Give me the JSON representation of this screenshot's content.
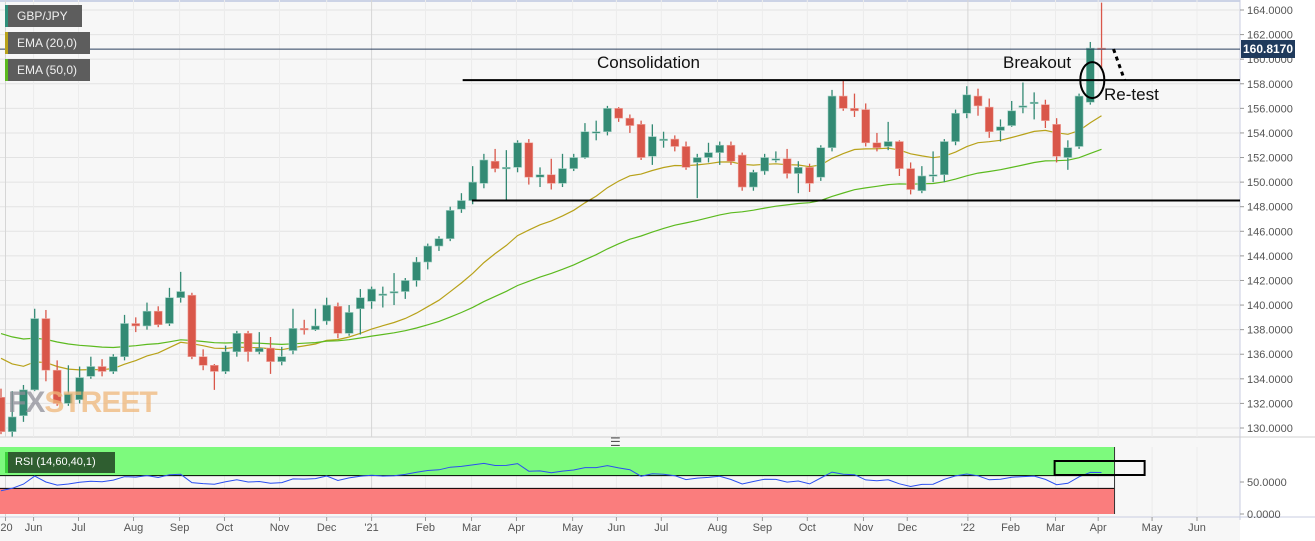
{
  "symbol": "GBP/JPY",
  "indicators": [
    {
      "label": "EMA (20,0)",
      "period": 20,
      "color": "#b8a21a",
      "seed": 136.3
    },
    {
      "label": "EMA (50,0)",
      "period": 50,
      "color": "#5cba1f",
      "seed": 138.0
    }
  ],
  "colors": {
    "up": "#338a74",
    "down": "#d9574a",
    "symbol_accent": "#2f8f7a",
    "rsi_line": "#2b4ff0",
    "overbought_zone": "#7dfa7d",
    "oversold_zone": "#fa7d7d",
    "price_tag": "#1f3a5c"
  },
  "last_price": "160.8170",
  "watermark": {
    "part1": "FX",
    "part2": "STREET"
  },
  "annotations": {
    "consolidation": "Consolidation",
    "breakout": "Breakout",
    "retest": "Re-test",
    "resistance": 158.3,
    "support": 148.5,
    "resistance_from_week": 42,
    "support_from_week": 43
  },
  "rsi": {
    "label": "RSI (14,60,40,1)",
    "period": 14,
    "upper": 60,
    "lower": 40,
    "ticks": [
      "50.0000",
      "0.0000"
    ],
    "tick_values": [
      50,
      0
    ],
    "seed_gain": 0.55,
    "seed_loss": 0.75
  },
  "chart_data": {
    "type": "candlestick",
    "title": "GBP/JPY weekly",
    "ylim": [
      129.2,
      165
    ],
    "y_ticks": [
      130,
      132,
      134,
      136,
      138,
      140,
      142,
      144,
      146,
      148,
      150,
      152,
      154,
      156,
      158,
      160,
      162,
      164
    ],
    "y_tick_labels": [
      "130.0000",
      "132.0000",
      "134.0000",
      "136.0000",
      "138.0000",
      "140.0000",
      "142.0000",
      "144.0000",
      "146.0000",
      "148.0000",
      "150.0000",
      "152.0000",
      "154.0000",
      "156.0000",
      "158.0000",
      "160.0000",
      "162.0000",
      "164.0000"
    ],
    "x_ticks": [
      {
        "label": "'20",
        "week": 0.4
      },
      {
        "label": "Jun",
        "week": 2.9
      },
      {
        "label": "Jul",
        "week": 6.9
      },
      {
        "label": "Aug",
        "week": 11.8
      },
      {
        "label": "Sep",
        "week": 15.9
      },
      {
        "label": "Oct",
        "week": 19.9
      },
      {
        "label": "Nov",
        "week": 24.8
      },
      {
        "label": "Dec",
        "week": 29.0
      },
      {
        "label": "'21",
        "week": 33.0
      },
      {
        "label": "Feb",
        "week": 37.8
      },
      {
        "label": "Mar",
        "week": 41.9
      },
      {
        "label": "Apr",
        "week": 45.9
      },
      {
        "label": "May",
        "week": 50.9
      },
      {
        "label": "Jun",
        "week": 54.8
      },
      {
        "label": "Jul",
        "week": 58.8
      },
      {
        "label": "Aug",
        "week": 63.8
      },
      {
        "label": "Sep",
        "week": 67.8
      },
      {
        "label": "Oct",
        "week": 71.8
      },
      {
        "label": "Nov",
        "week": 76.8
      },
      {
        "label": "Dec",
        "week": 80.7
      },
      {
        "label": "'22",
        "week": 86.1
      },
      {
        "label": "Feb",
        "week": 89.9
      },
      {
        "label": "Mar",
        "week": 93.9
      },
      {
        "label": "Apr",
        "week": 97.7
      },
      {
        "label": "May",
        "week": 102.5
      },
      {
        "label": "Jun",
        "week": 106.5
      }
    ],
    "ohlc": [
      [
        132.5,
        133.2,
        129.5,
        129.7
      ],
      [
        129.7,
        133.0,
        129.3,
        130.9
      ],
      [
        131.0,
        133.5,
        130.5,
        133.1
      ],
      [
        133.1,
        139.7,
        133.0,
        138.9
      ],
      [
        138.9,
        139.6,
        133.8,
        134.7
      ],
      [
        134.7,
        135.5,
        131.8,
        132.0
      ],
      [
        132.0,
        135.1,
        131.8,
        132.8
      ],
      [
        132.3,
        135.0,
        132.0,
        134.1
      ],
      [
        134.2,
        135.8,
        134.0,
        135.0
      ],
      [
        135.0,
        135.6,
        134.2,
        134.6
      ],
      [
        134.6,
        136.0,
        134.4,
        135.8
      ],
      [
        135.8,
        139.2,
        135.5,
        138.5
      ],
      [
        138.5,
        139.0,
        137.8,
        138.3
      ],
      [
        138.3,
        140.2,
        138.0,
        139.5
      ],
      [
        139.5,
        139.9,
        138.2,
        138.4
      ],
      [
        138.5,
        141.4,
        138.3,
        140.6
      ],
      [
        140.6,
        142.7,
        140.2,
        141.1
      ],
      [
        140.8,
        141.0,
        135.6,
        135.8
      ],
      [
        135.8,
        136.4,
        134.7,
        135.1
      ],
      [
        135.1,
        135.2,
        133.1,
        134.6
      ],
      [
        134.6,
        136.7,
        134.4,
        136.2
      ],
      [
        136.2,
        137.9,
        135.8,
        137.7
      ],
      [
        137.7,
        137.9,
        135.4,
        136.2
      ],
      [
        136.2,
        137.8,
        136.0,
        136.5
      ],
      [
        136.5,
        137.4,
        134.4,
        135.4
      ],
      [
        135.4,
        136.6,
        135.1,
        135.8
      ],
      [
        136.3,
        139.7,
        136.0,
        138.1
      ],
      [
        138.1,
        138.8,
        137.6,
        138.0
      ],
      [
        138.0,
        139.7,
        137.9,
        138.3
      ],
      [
        138.7,
        140.6,
        138.4,
        140.0
      ],
      [
        139.9,
        140.2,
        137.3,
        137.7
      ],
      [
        137.7,
        140.0,
        137.5,
        139.4
      ],
      [
        139.7,
        141.3,
        137.6,
        140.6
      ],
      [
        140.3,
        141.5,
        139.7,
        141.3
      ],
      [
        140.8,
        141.5,
        139.8,
        140.9
      ],
      [
        141.0,
        142.6,
        140.0,
        141.1
      ],
      [
        141.1,
        142.2,
        140.5,
        142.0
      ],
      [
        142.0,
        143.9,
        141.5,
        143.5
      ],
      [
        143.5,
        145.0,
        142.9,
        144.8
      ],
      [
        144.8,
        145.6,
        144.4,
        145.4
      ],
      [
        145.4,
        148.0,
        145.2,
        147.7
      ],
      [
        147.8,
        149.1,
        147.5,
        148.5
      ],
      [
        148.5,
        151.3,
        148.2,
        150.0
      ],
      [
        149.9,
        152.3,
        149.5,
        151.8
      ],
      [
        151.7,
        152.7,
        150.8,
        151.1
      ],
      [
        151.1,
        152.6,
        148.5,
        151.2
      ],
      [
        151.2,
        153.4,
        150.8,
        153.2
      ],
      [
        153.2,
        153.5,
        149.8,
        150.4
      ],
      [
        150.4,
        151.2,
        149.6,
        150.6
      ],
      [
        150.6,
        151.9,
        149.4,
        149.9
      ],
      [
        149.9,
        152.3,
        149.6,
        151.1
      ],
      [
        151.1,
        152.3,
        150.9,
        152.0
      ],
      [
        152.0,
        154.8,
        151.9,
        154.1
      ],
      [
        154.0,
        155.0,
        153.4,
        154.1
      ],
      [
        154.1,
        156.2,
        153.8,
        156.0
      ],
      [
        156.0,
        156.1,
        154.9,
        155.2
      ],
      [
        155.2,
        155.5,
        154.0,
        154.6
      ],
      [
        154.7,
        155.0,
        151.8,
        152.0
      ],
      [
        152.1,
        154.7,
        151.4,
        153.7
      ],
      [
        153.5,
        154.1,
        152.8,
        153.5
      ],
      [
        153.5,
        153.8,
        152.5,
        152.9
      ],
      [
        152.9,
        153.3,
        151.0,
        151.2
      ],
      [
        151.6,
        152.3,
        148.7,
        152.0
      ],
      [
        152.0,
        153.2,
        151.6,
        152.4
      ],
      [
        152.4,
        153.3,
        151.4,
        153.0
      ],
      [
        153.0,
        153.3,
        151.4,
        151.7
      ],
      [
        152.2,
        152.4,
        149.3,
        149.6
      ],
      [
        149.6,
        151.0,
        149.3,
        150.8
      ],
      [
        150.9,
        152.3,
        150.6,
        152.0
      ],
      [
        151.9,
        152.5,
        151.6,
        151.9
      ],
      [
        151.9,
        152.7,
        150.3,
        150.7
      ],
      [
        150.7,
        151.7,
        149.1,
        151.2
      ],
      [
        151.2,
        151.5,
        149.2,
        149.9
      ],
      [
        150.4,
        153.0,
        150.1,
        152.8
      ],
      [
        152.8,
        157.5,
        152.5,
        157.0
      ],
      [
        157.0,
        158.3,
        155.8,
        156.0
      ],
      [
        156.0,
        157.2,
        155.3,
        155.8
      ],
      [
        155.9,
        156.4,
        152.9,
        153.2
      ],
      [
        153.2,
        154.0,
        152.5,
        152.8
      ],
      [
        152.9,
        154.9,
        152.6,
        153.3
      ],
      [
        153.3,
        153.4,
        150.5,
        151.1
      ],
      [
        151.1,
        151.6,
        149.0,
        149.4
      ],
      [
        149.3,
        151.3,
        149.1,
        150.5
      ],
      [
        150.5,
        152.5,
        150.0,
        150.6
      ],
      [
        150.6,
        153.5,
        150.0,
        153.3
      ],
      [
        153.3,
        155.9,
        153.0,
        155.6
      ],
      [
        155.6,
        157.8,
        155.2,
        157.1
      ],
      [
        157.0,
        157.6,
        155.4,
        156.2
      ],
      [
        156.1,
        156.8,
        153.6,
        154.1
      ],
      [
        154.2,
        155.1,
        153.3,
        154.5
      ],
      [
        154.6,
        156.6,
        154.5,
        155.8
      ],
      [
        156.1,
        158.1,
        155.6,
        156.2
      ],
      [
        156.4,
        157.3,
        155.1,
        156.5
      ],
      [
        156.3,
        156.7,
        154.4,
        155.0
      ],
      [
        154.7,
        155.2,
        151.6,
        152.1
      ],
      [
        152.0,
        153.4,
        151.0,
        152.8
      ],
      [
        152.9,
        157.2,
        152.7,
        157.0
      ],
      [
        156.5,
        161.4,
        156.3,
        160.9
      ],
      [
        160.9,
        164.6,
        159.1,
        160.817
      ]
    ]
  }
}
